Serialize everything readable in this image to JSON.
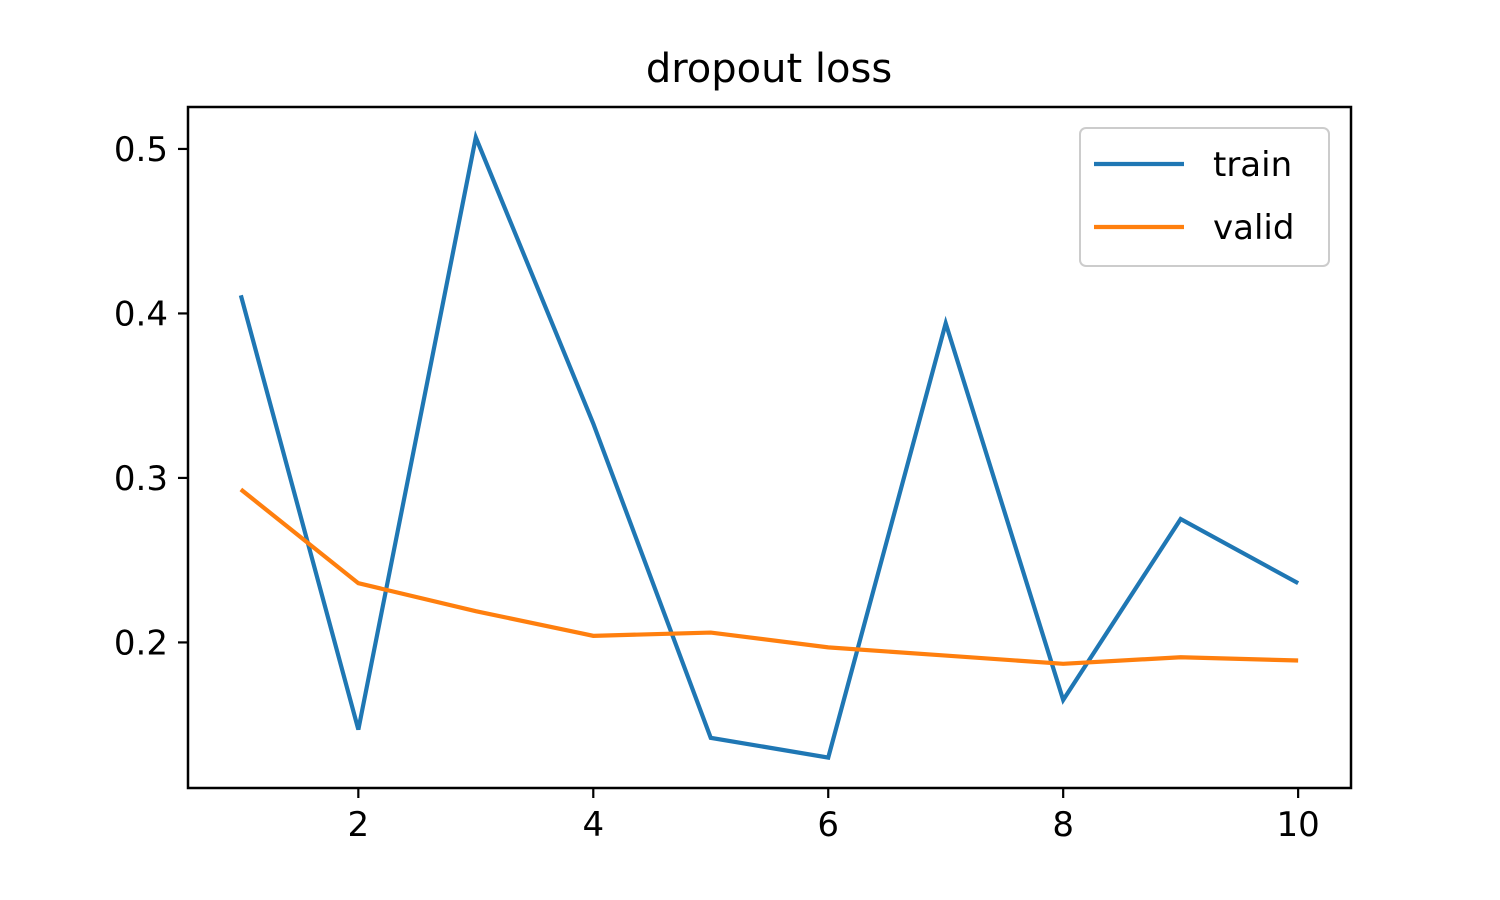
{
  "chart_data": {
    "type": "line",
    "title": "dropout loss",
    "xlabel": "",
    "ylabel": "",
    "x": [
      1,
      2,
      3,
      4,
      5,
      6,
      7,
      8,
      9,
      10
    ],
    "series": [
      {
        "name": "train",
        "color": "#1f77b4",
        "values": [
          0.411,
          0.147,
          0.507,
          0.333,
          0.142,
          0.13,
          0.394,
          0.165,
          0.275,
          0.236
        ]
      },
      {
        "name": "valid",
        "color": "#ff7f0e",
        "values": [
          0.293,
          0.236,
          0.219,
          0.204,
          0.206,
          0.197,
          0.192,
          0.187,
          0.191,
          0.189
        ]
      }
    ],
    "xlim": [
      0.55,
      10.45
    ],
    "ylim": [
      0.1115,
      0.5255
    ],
    "xticks": [
      2,
      4,
      6,
      8,
      10
    ],
    "yticks": [
      0.2,
      0.3,
      0.4,
      0.5
    ],
    "xtick_labels": [
      "2",
      "4",
      "6",
      "8",
      "10"
    ],
    "ytick_labels": [
      "0.2",
      "0.3",
      "0.4",
      "0.5"
    ],
    "grid": false,
    "legend_position": "top-right"
  }
}
